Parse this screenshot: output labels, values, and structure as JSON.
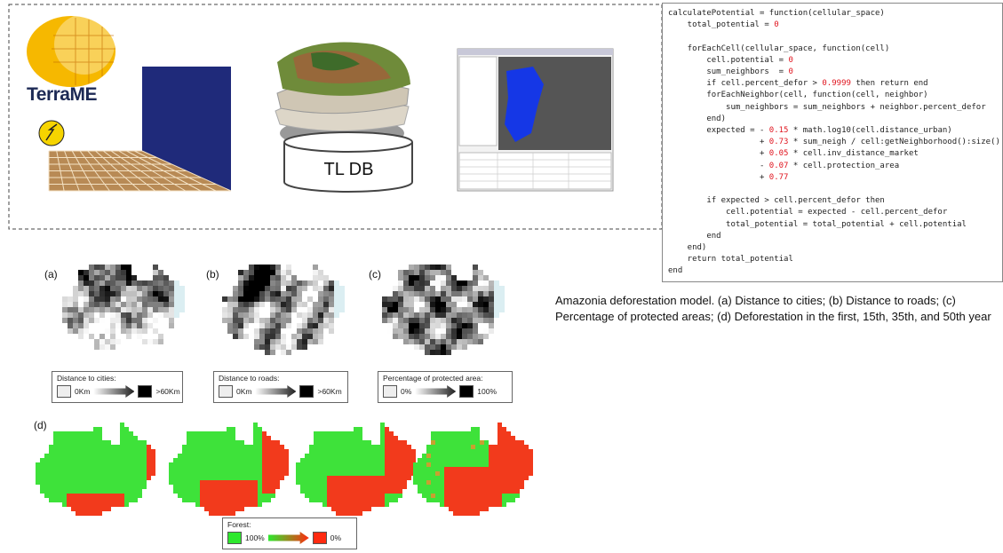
{
  "logo": {
    "title": "TerraME"
  },
  "database": {
    "label": "TL DB"
  },
  "code": "calculatePotential = function(cellular_space)\n    total_potential = 0\n\n    forEachCell(cellular_space, function(cell)\n        cell.potential = 0\n        sum_neighbors  = 0\n        if cell.percent_defor > 0.9999 then return end\n        forEachNeighbor(cell, function(cell, neighbor)\n            sum_neighbors = sum_neighbors + neighbor.percent_defor\n        end)\n        expected = - 0.15 * math.log10(cell.distance_urban)\n                   + 0.73 * sum_neigh / cell:getNeighborhood():size()\n                   + 0.05 * cell.inv_distance_market\n                   - 0.07 * cell.protection_area\n                   + 0.77\n\n        if expected > cell.percent_defor then\n            cell.potential = expected - cell.percent_defor\n            total_potential = total_potential + cell.potential\n        end\n    end)\n    return total_potential\nend",
  "caption": "Amazonia deforestation model. (a) Distance to cities; (b) Distance to  roads; (c) Percentage of protected areas; (d) Deforestation in the first, 15th, 35th, and 50th year",
  "panels": [
    {
      "label": "(a)",
      "legend": {
        "title": "Distance to cities:",
        "min": "0Km",
        "max": ">60Km"
      }
    },
    {
      "label": "(b)",
      "legend": {
        "title": "Distance to roads:",
        "min": "0Km",
        "max": ">60Km"
      }
    },
    {
      "label": "(c)",
      "legend": {
        "title": "Percentage of protected area:",
        "min": "0%",
        "max": "100%"
      }
    }
  ],
  "deforestation": {
    "label": "(d)",
    "legend": {
      "title": "Forest:",
      "min": "100%",
      "max": "0%"
    }
  }
}
